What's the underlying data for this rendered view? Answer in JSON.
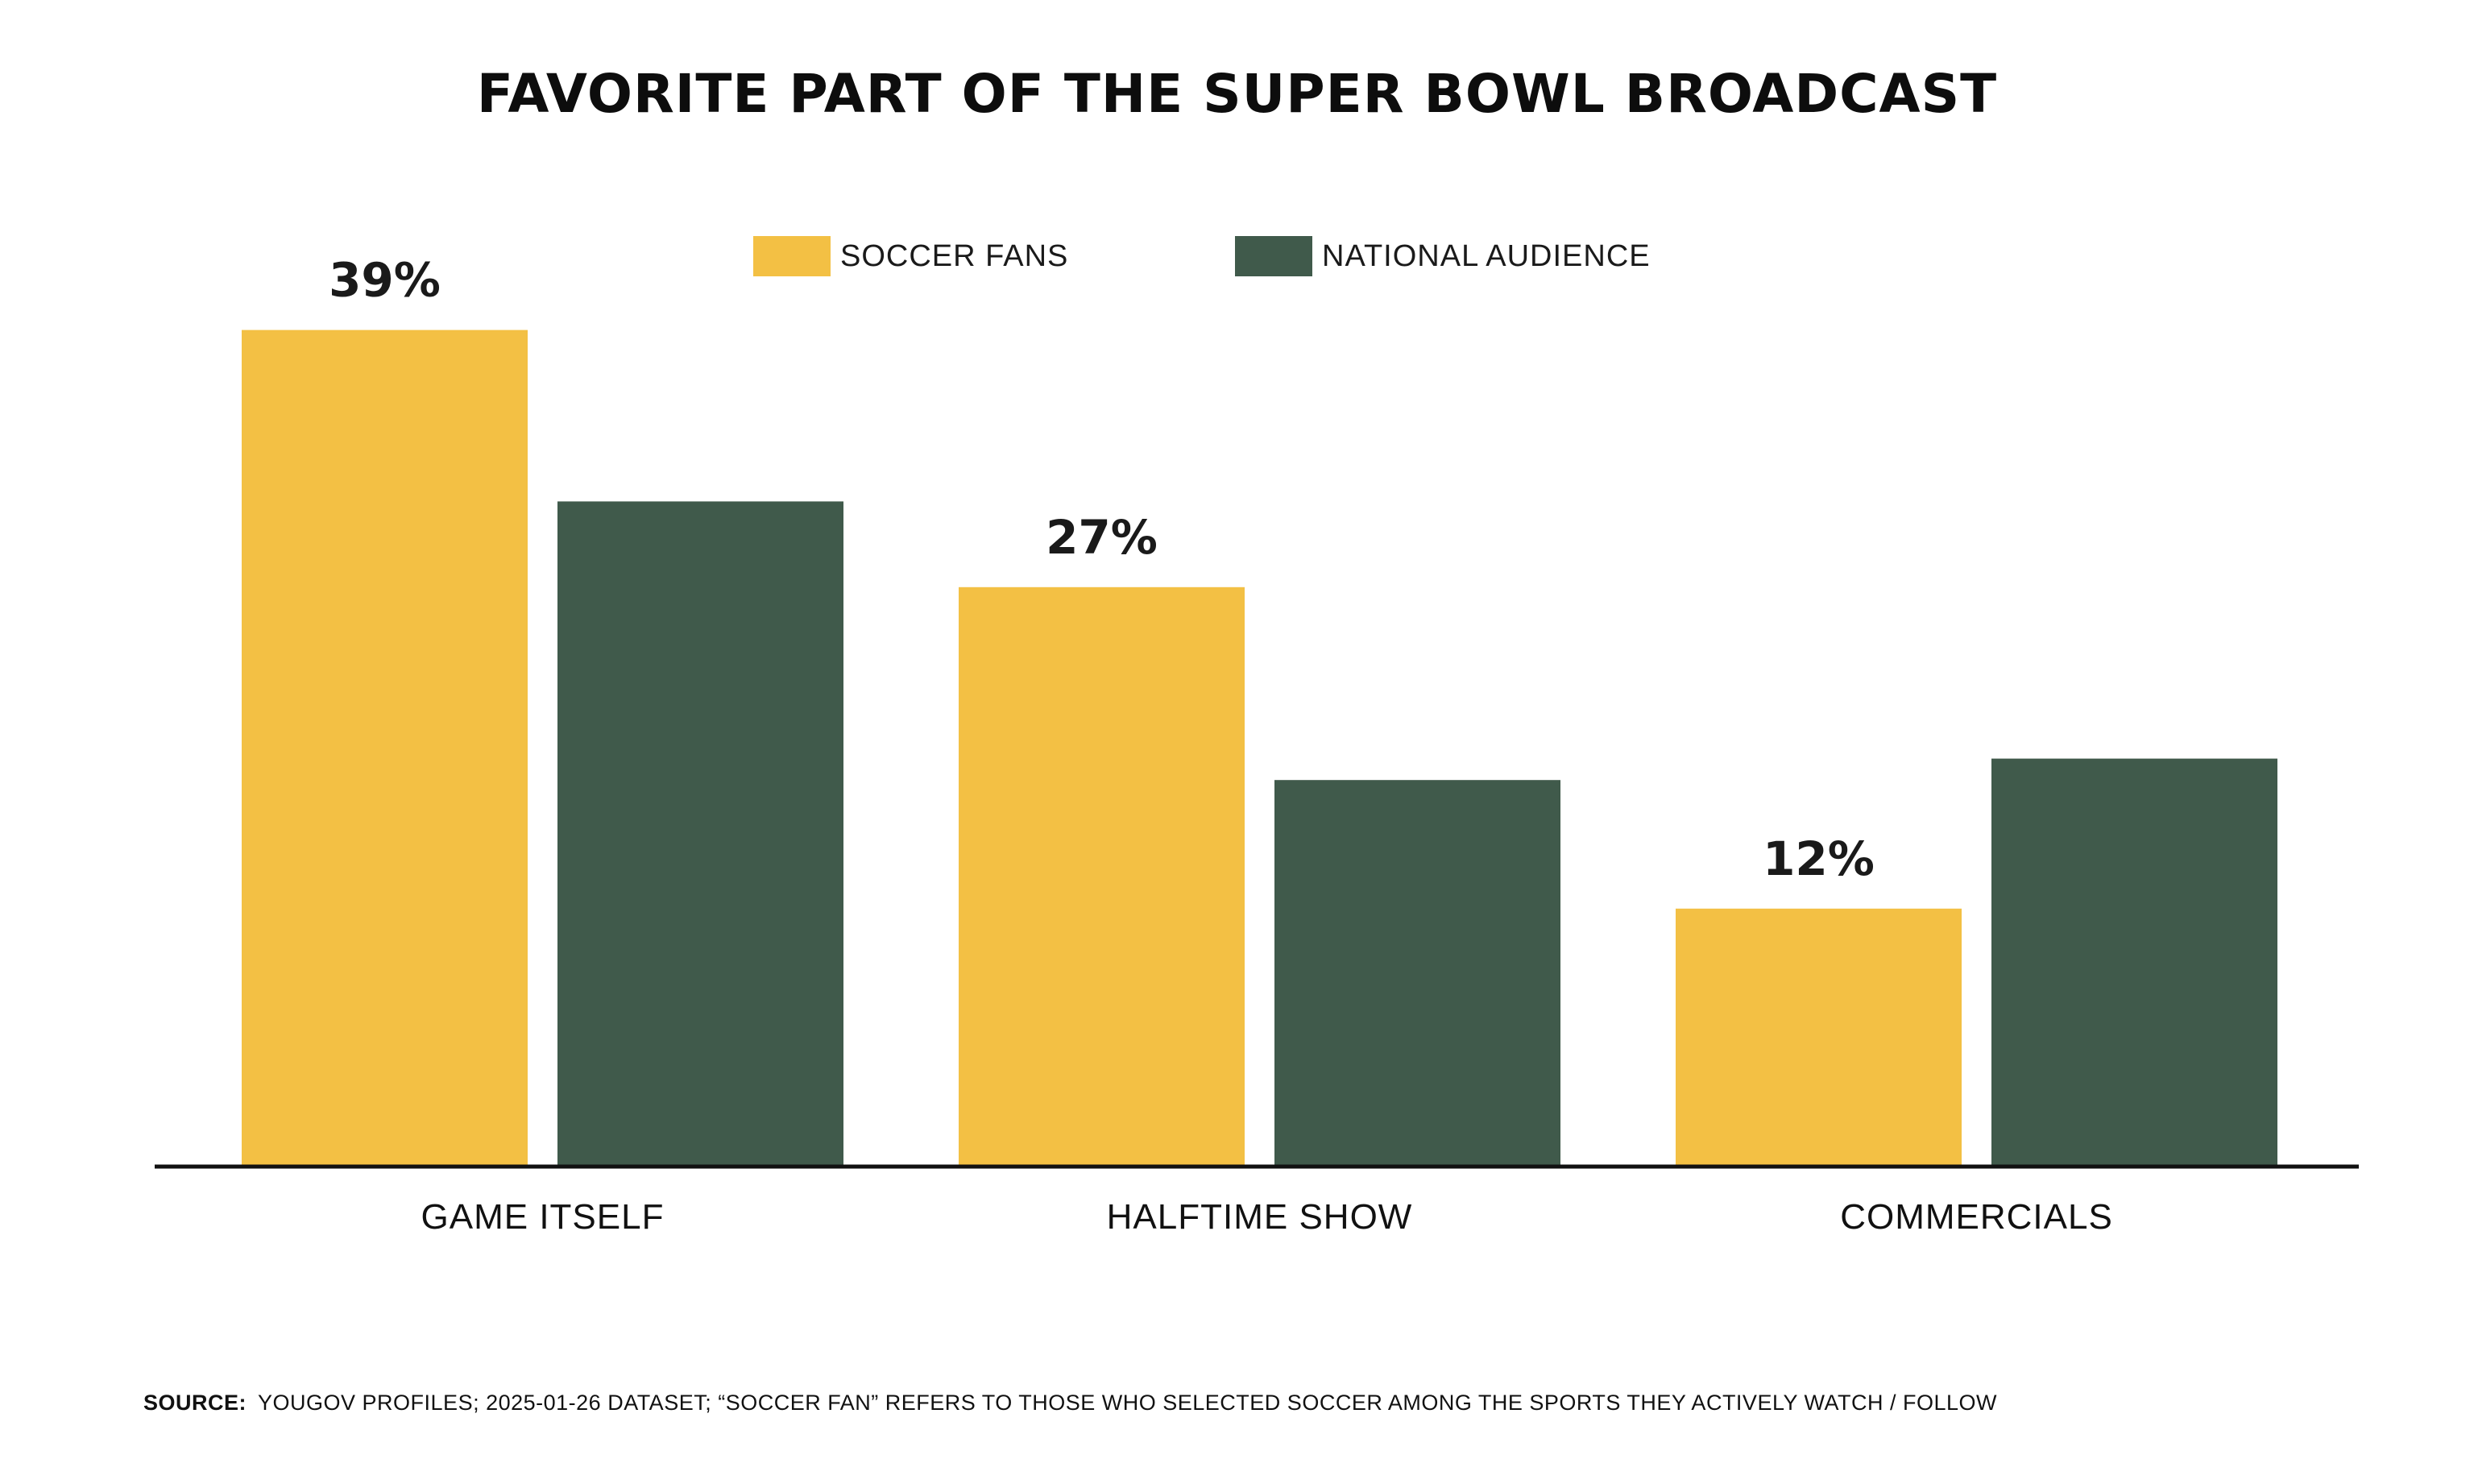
{
  "colors": {
    "soccer_fans": "#F3C044",
    "national_audience": "#405A4B",
    "axis": "#111111",
    "text": "#1a1a1a"
  },
  "chart_data": {
    "type": "bar",
    "title": "FAVORITE PART OF THE SUPER BOWL BROADCAST",
    "categories": [
      "GAME ITSELF",
      "HALFTIME SHOW",
      "COMMERCIALS"
    ],
    "series": [
      {
        "name": "SOCCER FANS",
        "values": [
          39,
          27,
          12
        ],
        "labels": [
          "39%",
          "27%",
          "12%"
        ],
        "color": "#F3C044"
      },
      {
        "name": "NATIONAL AUDIENCE",
        "values": [
          31,
          18,
          19
        ],
        "labels": [
          null,
          null,
          null
        ],
        "color": "#405A4B"
      }
    ],
    "ylim": [
      0,
      45
    ],
    "grid": false,
    "legend_position": "top-center"
  },
  "footer": {
    "source_label": "SOURCE:",
    "source_text": "YOUGOV PROFILES; 2025-01-26 DATASET; “SOCCER FAN” REFERS TO THOSE WHO SELECTED SOCCER AMONG THE SPORTS THEY ACTIVELY WATCH / FOLLOW"
  }
}
